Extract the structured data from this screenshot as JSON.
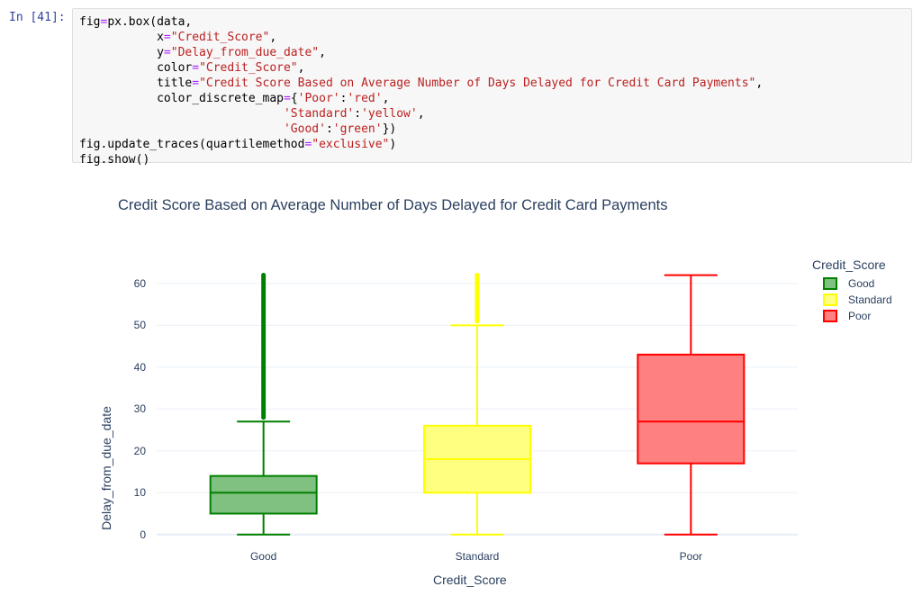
{
  "prompt": "In [41]:",
  "code_lines": [
    [
      {
        "t": "fig"
      },
      {
        "t": "=",
        "c": "op"
      },
      {
        "t": "px.box(data,"
      }
    ],
    [
      {
        "t": "           x"
      },
      {
        "t": "=",
        "c": "op"
      },
      {
        "t": "\"Credit_Score\"",
        "c": "st"
      },
      {
        "t": ","
      }
    ],
    [
      {
        "t": "           y"
      },
      {
        "t": "=",
        "c": "op"
      },
      {
        "t": "\"Delay_from_due_date\"",
        "c": "st"
      },
      {
        "t": ","
      }
    ],
    [
      {
        "t": "           color"
      },
      {
        "t": "=",
        "c": "op"
      },
      {
        "t": "\"Credit_Score\"",
        "c": "st"
      },
      {
        "t": ","
      }
    ],
    [
      {
        "t": "           title"
      },
      {
        "t": "=",
        "c": "op"
      },
      {
        "t": "\"Credit Score Based on Average Number of Days Delayed for Credit Card Payments\"",
        "c": "st"
      },
      {
        "t": ","
      }
    ],
    [
      {
        "t": "           color_discrete_map"
      },
      {
        "t": "=",
        "c": "op"
      },
      {
        "t": "{"
      },
      {
        "t": "'Poor'",
        "c": "st"
      },
      {
        "t": ":"
      },
      {
        "t": "'red'",
        "c": "st"
      },
      {
        "t": ","
      }
    ],
    [
      {
        "t": "                             "
      },
      {
        "t": "'Standard'",
        "c": "st"
      },
      {
        "t": ":"
      },
      {
        "t": "'yellow'",
        "c": "st"
      },
      {
        "t": ","
      }
    ],
    [
      {
        "t": "                             "
      },
      {
        "t": "'Good'",
        "c": "st"
      },
      {
        "t": ":"
      },
      {
        "t": "'green'",
        "c": "st"
      },
      {
        "t": "})"
      }
    ],
    [
      {
        "t": "fig.update_traces(quartilemethod"
      },
      {
        "t": "=",
        "c": "op"
      },
      {
        "t": "\"exclusive\"",
        "c": "st"
      },
      {
        "t": ")"
      }
    ],
    [
      {
        "t": "fig.show()"
      }
    ]
  ],
  "chart_data": {
    "type": "box",
    "title": "Credit Score Based on Average Number of Days Delayed for Credit Card Payments",
    "xlabel": "Credit_Score",
    "ylabel": "Delay_from_due_date",
    "categories": [
      "Good",
      "Standard",
      "Poor"
    ],
    "ylim": [
      -2,
      66
    ],
    "yticks": [
      0,
      10,
      20,
      30,
      40,
      50,
      60
    ],
    "grid": true,
    "legend": {
      "title": "Credit_Score",
      "placement": "top-right",
      "items": [
        "Good",
        "Standard",
        "Poor"
      ]
    },
    "series": [
      {
        "name": "Good",
        "color": "#008000",
        "fill": "#80c080",
        "min": 0,
        "q1": 5,
        "median": 10,
        "q3": 14,
        "max": 27,
        "outliers_from": 28,
        "outliers_to": 62
      },
      {
        "name": "Standard",
        "color": "#ffff00",
        "fill": "#ffff80",
        "min": 0,
        "q1": 10,
        "median": 18,
        "q3": 26,
        "max": 50,
        "outliers_from": 51,
        "outliers_to": 62
      },
      {
        "name": "Poor",
        "color": "#ff0000",
        "fill": "#ff8080",
        "min": 0,
        "q1": 17,
        "median": 27,
        "q3": 43,
        "max": 62,
        "outliers_from": null,
        "outliers_to": null
      }
    ]
  }
}
